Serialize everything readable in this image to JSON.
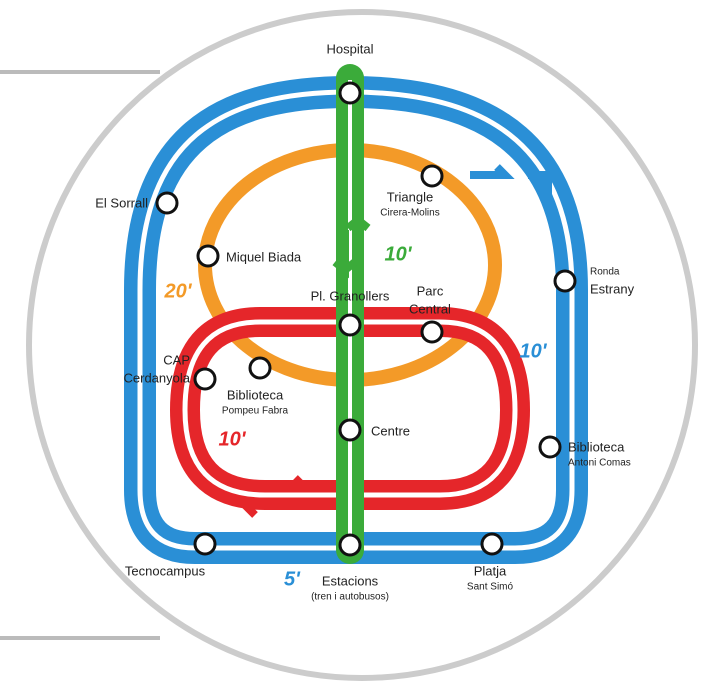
{
  "title": "Hospital",
  "stations": [
    {
      "label": [
        "Hospital"
      ]
    },
    {
      "label": [
        "Triangle"
      ],
      "sub": "Cirera-Molins"
    },
    {
      "label": [
        "El Sorrall"
      ]
    },
    {
      "label": [
        "Miquel Biada"
      ]
    },
    {
      "label": [
        "Ronda",
        "Estrany"
      ]
    },
    {
      "label": [
        "Pl. Granollers"
      ]
    },
    {
      "label": [
        "Parc",
        "Central"
      ]
    },
    {
      "label": [
        "CAP",
        "Cerdanyola"
      ]
    },
    {
      "label": [
        "Biblioteca"
      ],
      "sub": "Pompeu Fabra"
    },
    {
      "label": [
        "Centre"
      ]
    },
    {
      "label": [
        "Biblioteca"
      ],
      "sub": "Antoni Comas"
    },
    {
      "label": [
        "Tecnocampus"
      ]
    },
    {
      "label": [
        "Estacions"
      ],
      "sub": "(tren i autobusos)"
    },
    {
      "label": [
        "Platja"
      ],
      "sub": "Sant Simó"
    }
  ],
  "frequencies": [
    {
      "line": "orange",
      "label": "20'"
    },
    {
      "line": "green",
      "label": "10'"
    },
    {
      "line": "blue",
      "label": "10'"
    },
    {
      "line": "red",
      "label": "10'"
    },
    {
      "line": "blue",
      "label": "5'"
    }
  ]
}
